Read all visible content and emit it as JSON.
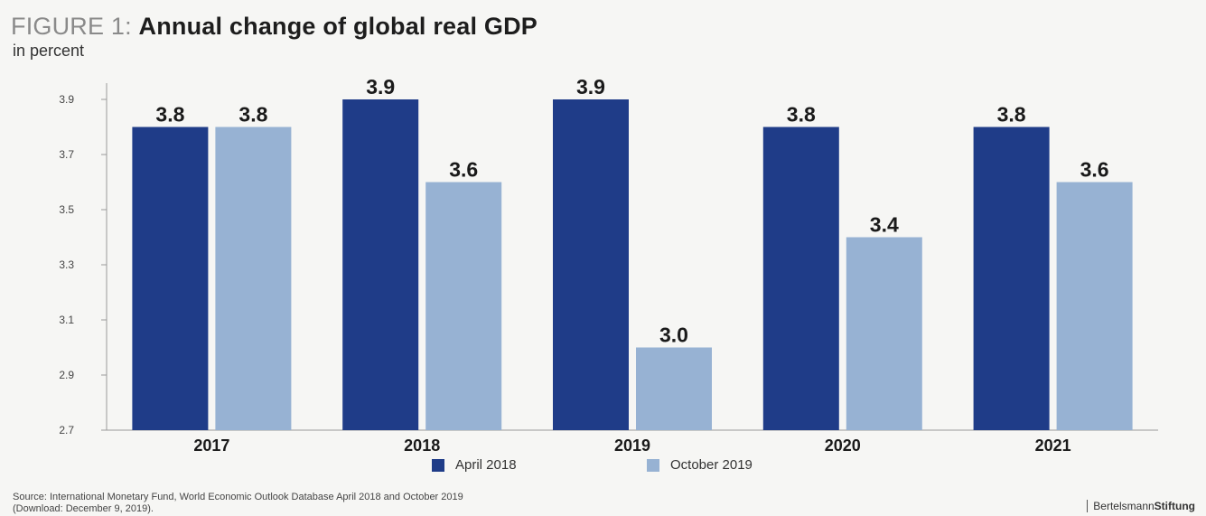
{
  "figure": {
    "prefix": "FIGURE 1:",
    "title": "Annual change of global real GDP",
    "subtitle": "in percent"
  },
  "chart_data": {
    "type": "bar",
    "title": "Annual change of global real GDP",
    "subtitle": "in percent",
    "categories": [
      "2017",
      "2018",
      "2019",
      "2020",
      "2021"
    ],
    "series": [
      {
        "name": "April 2018",
        "values": [
          3.8,
          3.9,
          3.9,
          3.8,
          3.8
        ],
        "color": "#1f3c88"
      },
      {
        "name": "October 2019",
        "values": [
          3.8,
          3.6,
          3.0,
          3.4,
          3.6
        ],
        "color": "#97b2d3"
      }
    ],
    "data_labels": [
      [
        "3.8",
        "3.9",
        "3.9",
        "3.8",
        "3.8"
      ],
      [
        "3.8",
        "3.6",
        "3.0",
        "3.4",
        "3.6"
      ]
    ],
    "yticks": [
      2.7,
      2.9,
      3.1,
      3.3,
      3.5,
      3.7,
      3.9
    ],
    "ytick_labels": [
      "2.7",
      "2.9",
      "3.1",
      "3.3",
      "3.5",
      "3.7",
      "3.9"
    ],
    "ylim": [
      2.7,
      3.9
    ],
    "xlabel": "",
    "ylabel": "",
    "grid": false,
    "legend_position": "bottom"
  },
  "source": {
    "line1": "Source: International Monetary Fund, World Economic Outlook Database April 2018 and October 2019",
    "line2": "(Download: December 9, 2019)."
  },
  "brand": {
    "part1": "Bertelsmann",
    "part2": "Stiftung"
  }
}
